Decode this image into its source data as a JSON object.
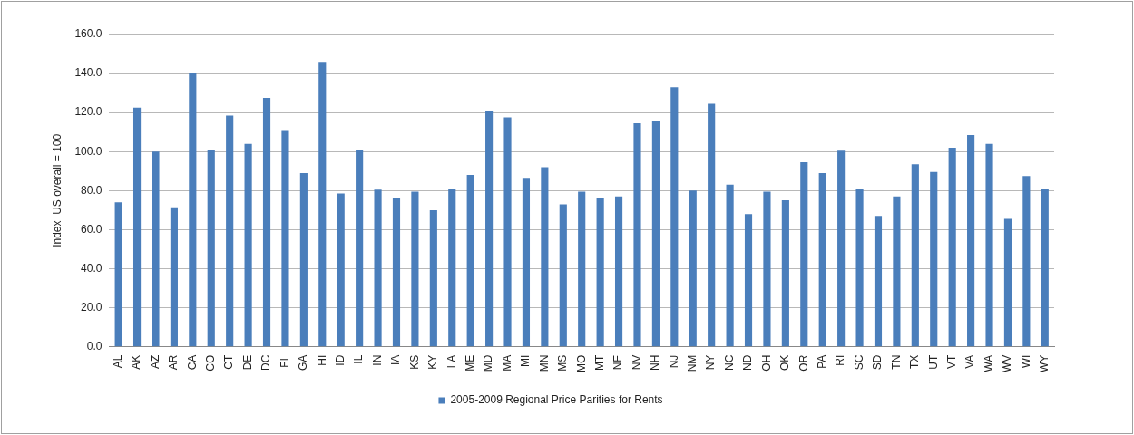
{
  "chart_data": {
    "type": "bar",
    "ylabel": "Index  US overall = 100",
    "categories": [
      "AL",
      "AK",
      "AZ",
      "AR",
      "CA",
      "CO",
      "CT",
      "DE",
      "DC",
      "FL",
      "GA",
      "HI",
      "ID",
      "IL",
      "IN",
      "IA",
      "KS",
      "KY",
      "LA",
      "ME",
      "MD",
      "MA",
      "MI",
      "MN",
      "MS",
      "MO",
      "MT",
      "NE",
      "NV",
      "NH",
      "NJ",
      "NM",
      "NY",
      "NC",
      "ND",
      "OH",
      "OK",
      "OR",
      "PA",
      "RI",
      "SC",
      "SD",
      "TN",
      "TX",
      "UT",
      "VT",
      "VA",
      "WA",
      "WV",
      "WI",
      "WY"
    ],
    "series": [
      {
        "name": "2005-2009 Regional Price Parities for Rents",
        "color": "#4a7ebb",
        "values": [
          74,
          122.5,
          100,
          71.5,
          140,
          101,
          118.5,
          104,
          127.5,
          111,
          89,
          146,
          78.5,
          101,
          80.5,
          76,
          79.5,
          70,
          81,
          88,
          121,
          117.5,
          86.5,
          92,
          73,
          79.5,
          76,
          77,
          114.5,
          115.5,
          133,
          80,
          124.5,
          83,
          68,
          79.5,
          75,
          94.5,
          89,
          100.5,
          81,
          67,
          77,
          93.5,
          89.5,
          102,
          108.5,
          104,
          65.5,
          87.5,
          81
        ]
      }
    ],
    "ylim": [
      0,
      160
    ],
    "yticks": [
      {
        "value": 0,
        "label": "0.0"
      },
      {
        "value": 20,
        "label": "20.0"
      },
      {
        "value": 40,
        "label": "40.0"
      },
      {
        "value": 60,
        "label": "60.0"
      },
      {
        "value": 80,
        "label": "80.0"
      },
      {
        "value": 100,
        "label": "100.0"
      },
      {
        "value": 120,
        "label": "120.0"
      },
      {
        "value": 140,
        "label": "140.0"
      },
      {
        "value": 160,
        "label": "160.0"
      }
    ],
    "grid": "y",
    "legend": "bottom"
  }
}
